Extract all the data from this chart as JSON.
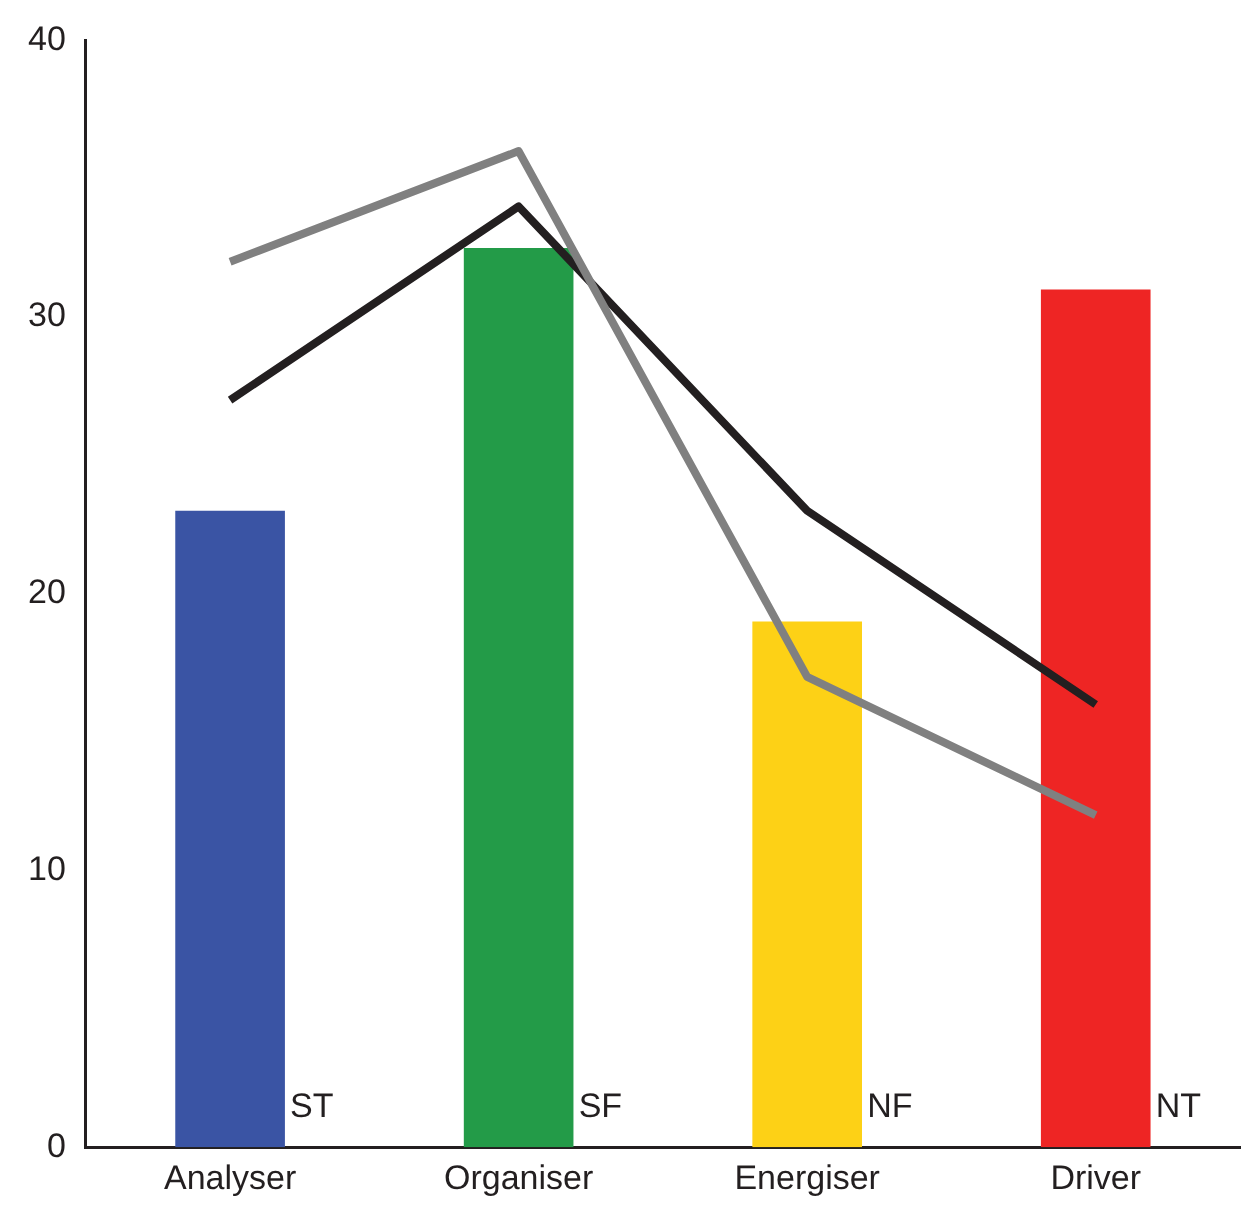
{
  "chart_data": {
    "type": "bar",
    "categories": [
      "Analyser",
      "Organiser",
      "Energiser",
      "Driver"
    ],
    "series": [
      {
        "colors": [
          "#3a54a4",
          "#239b48",
          "#fdd116",
          "#ee2524"
        ],
        "values": [
          23,
          32.5,
          19,
          31
        ]
      },
      {
        "type": "line",
        "color": "#808080",
        "values": [
          32,
          36,
          17,
          12
        ]
      },
      {
        "type": "line",
        "color": "#231f20",
        "values": [
          27,
          34,
          23,
          16
        ]
      }
    ],
    "ylim": [
      0,
      40
    ],
    "yticks": [
      0,
      10,
      20,
      30,
      40
    ],
    "grid": false,
    "legend": false,
    "marker": "none",
    "annotations": [
      "ST",
      "SF",
      "NF",
      "NT"
    ]
  }
}
